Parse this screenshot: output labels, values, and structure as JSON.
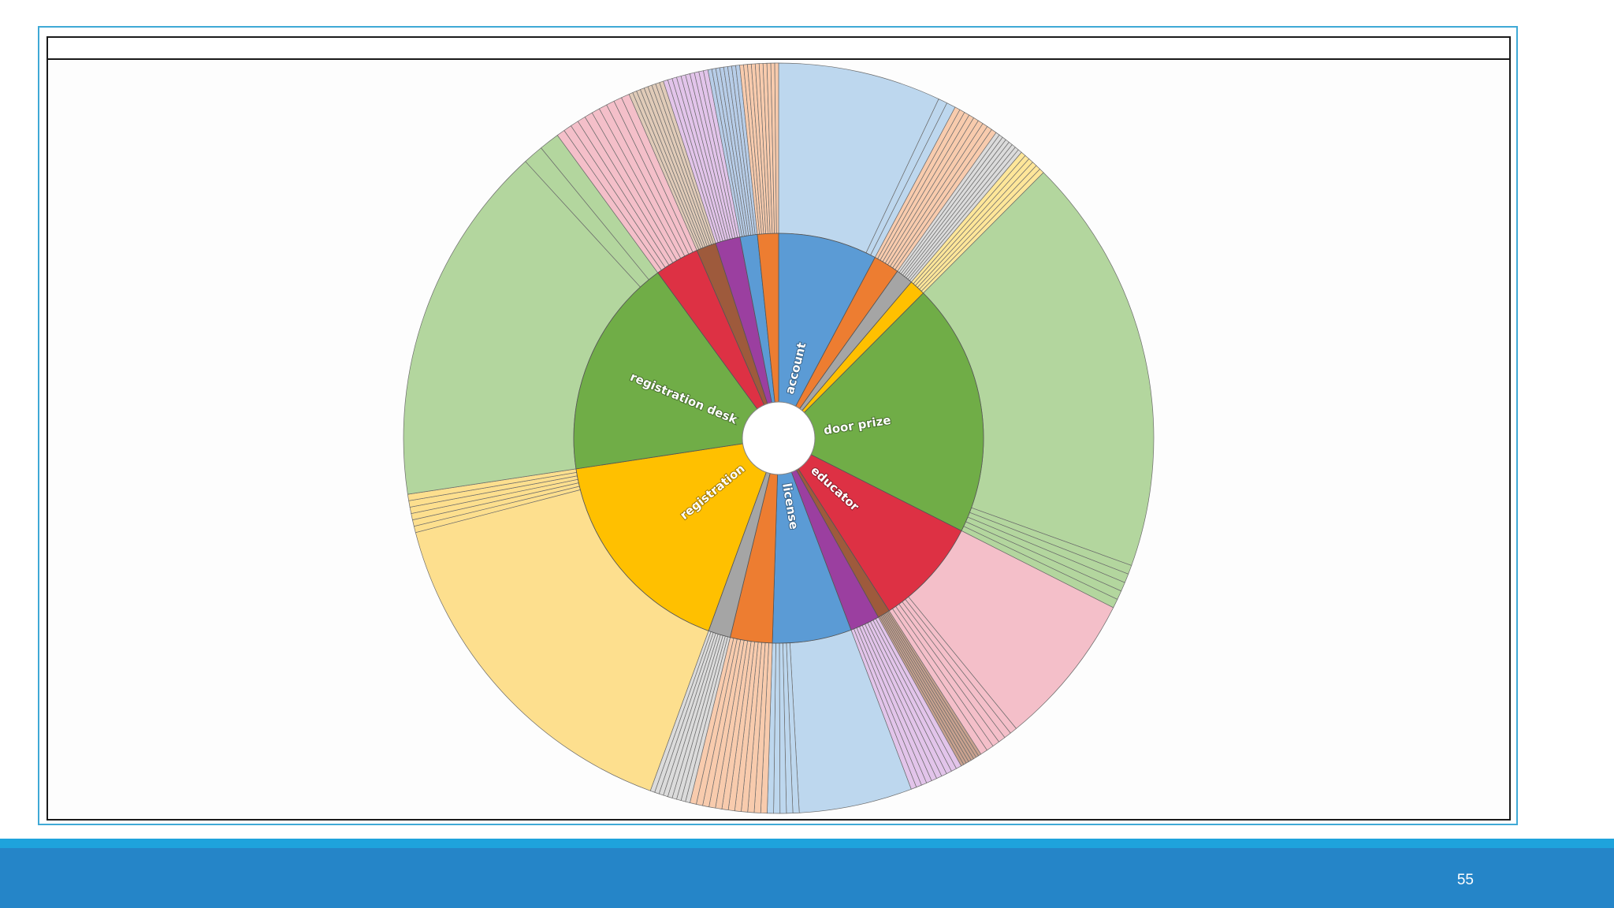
{
  "slide": {
    "page_number": "55",
    "footer_light_color": "#1ea3dc",
    "footer_main_color": "#2585c8"
  },
  "chart_data": {
    "type": "sunburst",
    "title": "",
    "inner_ring": [
      {
        "label": "account",
        "value": 8,
        "color": "#5b9bd5",
        "show_label": true
      },
      {
        "label": "",
        "value": 2.1,
        "color": "#ed7d31",
        "show_label": false
      },
      {
        "label": "",
        "value": 1.4,
        "color": "#a5a5a5",
        "show_label": false
      },
      {
        "label": "",
        "value": 1.3,
        "color": "#ffc000",
        "show_label": false
      },
      {
        "label": "door prize",
        "value": 20.5,
        "color": "#70ad47",
        "show_label": true
      },
      {
        "label": "educator",
        "value": 8.7,
        "color": "#dd3144",
        "show_label": true
      },
      {
        "label": "",
        "value": 1.0,
        "color": "#9e5a3c",
        "show_label": false
      },
      {
        "label": "",
        "value": 2.4,
        "color": "#9b3fa0",
        "show_label": false
      },
      {
        "label": "license",
        "value": 6.4,
        "color": "#5b9bd5",
        "show_label": true
      },
      {
        "label": "",
        "value": 3.4,
        "color": "#ed7d31",
        "show_label": false
      },
      {
        "label": "",
        "value": 1.8,
        "color": "#a5a5a5",
        "show_label": false
      },
      {
        "label": "registration",
        "value": 17.5,
        "color": "#ffc000",
        "show_label": true
      },
      {
        "label": "registration desk",
        "value": 17.8,
        "color": "#70ad47",
        "show_label": true
      },
      {
        "label": "",
        "value": 3.6,
        "color": "#dd3144",
        "show_label": false
      },
      {
        "label": "",
        "value": 1.6,
        "color": "#9e5a3c",
        "show_label": false
      },
      {
        "label": "",
        "value": 2.0,
        "color": "#9b3fa0",
        "show_label": false
      },
      {
        "label": "",
        "value": 1.4,
        "color": "#5b9bd5",
        "show_label": false
      },
      {
        "label": "",
        "value": 1.7,
        "color": "#ed7d31",
        "show_label": false
      }
    ],
    "outer_ring_groups": [
      {
        "parent_index": 0,
        "big_value": 7.2,
        "extra_slices": 2,
        "color": "#bdd7ee"
      },
      {
        "parent_index": 1,
        "big_value": 0,
        "extra_slices": 9,
        "color": "#f8cbad"
      },
      {
        "parent_index": 2,
        "big_value": 0,
        "extra_slices": 8,
        "color": "#dbdbdb"
      },
      {
        "parent_index": 3,
        "big_value": 0,
        "extra_slices": 6,
        "color": "#ffe699"
      },
      {
        "parent_index": 4,
        "big_value": 18.5,
        "extra_slices": 5,
        "color": "#b3d69e"
      },
      {
        "parent_index": 5,
        "big_value": 6.8,
        "extra_slices": 6,
        "color": "#f4bfc9"
      },
      {
        "parent_index": 6,
        "big_value": 0,
        "extra_slices": 8,
        "color": "#c9a28f"
      },
      {
        "parent_index": 7,
        "big_value": 0,
        "extra_slices": 10,
        "color": "#e2c4ea"
      },
      {
        "parent_index": 8,
        "big_value": 5.0,
        "extra_slices": 5,
        "color": "#bdd7ee"
      },
      {
        "parent_index": 9,
        "big_value": 0,
        "extra_slices": 12,
        "color": "#f8cbad"
      },
      {
        "parent_index": 10,
        "big_value": 0,
        "extra_slices": 9,
        "color": "#dbdbdb"
      },
      {
        "parent_index": 11,
        "big_value": 15.8,
        "extra_slices": 6,
        "color": "#fddf8e"
      },
      {
        "parent_index": 12,
        "big_value": 16.0,
        "extra_slices": 2,
        "color": "#b3d69e"
      },
      {
        "parent_index": 13,
        "big_value": 0,
        "extra_slices": 10,
        "color": "#f4bfc9"
      },
      {
        "parent_index": 14,
        "big_value": 0,
        "extra_slices": 9,
        "color": "#e0cbb8"
      },
      {
        "parent_index": 15,
        "big_value": 0,
        "extra_slices": 10,
        "color": "#e2c4ea"
      },
      {
        "parent_index": 16,
        "big_value": 0,
        "extra_slices": 8,
        "color": "#b7cde8"
      },
      {
        "parent_index": 17,
        "big_value": 0,
        "extra_slices": 10,
        "color": "#f8cbad"
      }
    ],
    "legend": "none",
    "center_hole": true
  }
}
